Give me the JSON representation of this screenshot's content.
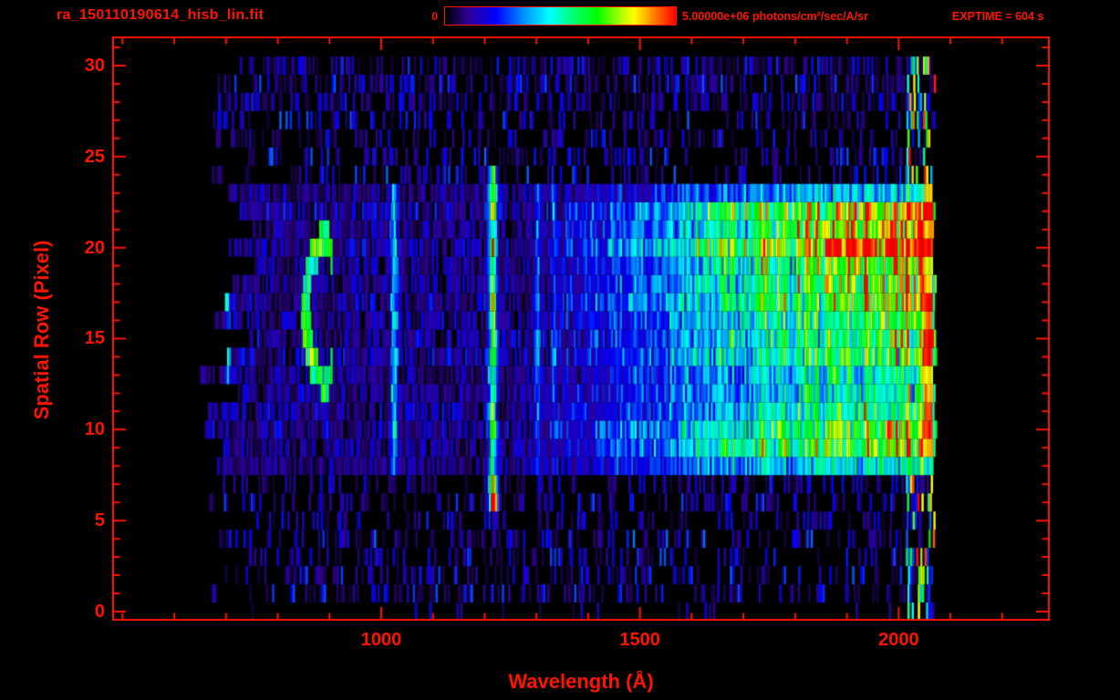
{
  "colors": {
    "background": "#000000",
    "accent_text": "#ff1400",
    "frame": "#ff1400"
  },
  "header": {
    "filename": "ra_150110190614_hisb_lin.fit",
    "colorbar_min_label": "0",
    "colorbar_max_label": "5.00000e+06 photons/cm²/sec/A/sr",
    "exptime_label": "EXPTIME = 604 s"
  },
  "chart_data": {
    "type": "heatmap",
    "title": "ra_150110190614_hisb_lin.fit",
    "xlabel": "Wavelength (Å)",
    "ylabel": "Spatial Row (Pixel)",
    "xlim": [
      480,
      2292
    ],
    "ylim": [
      -0.5,
      31.6
    ],
    "x_ticks": [
      1000,
      1500,
      2000
    ],
    "x_minor_step": 100,
    "y_ticks": [
      0,
      5,
      10,
      15,
      20,
      25,
      30
    ],
    "y_minor_step": 1,
    "grid": false,
    "colorbar": {
      "min": 0,
      "max": 5000000,
      "max_label": "5.00000e+06",
      "units": "photons/cm²/sec/A/sr",
      "position": "top"
    },
    "exposure_seconds": 604,
    "colormap_stops": [
      [
        0.0,
        "#000000"
      ],
      [
        0.1,
        "#30009a"
      ],
      [
        0.22,
        "#0000ff"
      ],
      [
        0.34,
        "#0090ff"
      ],
      [
        0.45,
        "#00ffff"
      ],
      [
        0.58,
        "#00ff55"
      ],
      [
        0.66,
        "#00ff00"
      ],
      [
        0.76,
        "#aaff00"
      ],
      [
        0.82,
        "#ffff00"
      ],
      [
        0.9,
        "#ff8800"
      ],
      [
        1.0,
        "#ff0000"
      ]
    ],
    "features": {
      "seed": 1337,
      "bin_angstrom": 4,
      "data_lambda": {
        "start_base": 650,
        "start_jitter": 110,
        "end_base": 2056,
        "end_jitter": 16,
        "end_band_base": 2062,
        "end_band_jitter": 10
      },
      "band": {
        "row_min": 8,
        "row_max": 23
      },
      "row_weights": [
        0.6,
        1.0,
        0.8,
        0.62,
        0.58,
        0.62,
        0.68,
        0.65,
        0.7,
        0.82,
        0.92,
        1.0,
        1.05,
        1.0,
        0.85,
        0.5
      ],
      "continuum_ramp": [
        [
          1300,
          0
        ],
        [
          1380,
          0.1
        ],
        [
          1450,
          0.18
        ],
        [
          1550,
          0.3
        ],
        [
          1650,
          0.45
        ],
        [
          1750,
          0.58
        ],
        [
          1850,
          0.68
        ],
        [
          1950,
          0.78
        ],
        [
          2045,
          0.82
        ]
      ],
      "noise_rows": [
        {
          "rows": [
            0,
            0
          ],
          "prob": 0.05
        },
        {
          "rows": [
            1,
            7
          ],
          "prob": 0.3
        },
        {
          "rows": [
            24,
            27
          ],
          "prob": 0.3
        },
        {
          "rows": [
            28,
            30
          ],
          "prob": 0.5
        }
      ],
      "band_noise": {
        "prob": 0.85,
        "amp": 0.2
      },
      "sparse_amp": 0.24,
      "lines": [
        {
          "center": 703,
          "width": 9,
          "rows": [
            13,
            17
          ],
          "amp": 0.3
        },
        {
          "center": 1025,
          "width": 13,
          "rows": [
            8,
            23
          ],
          "amp": 0.38
        },
        {
          "center": 1216,
          "width": 15,
          "rows": [
            6,
            24
          ],
          "amp": 0.6
        },
        {
          "center": 1302,
          "width": 10,
          "rows": [
            8,
            23
          ],
          "amp": 0.26
        },
        {
          "center": 1335,
          "width": 8,
          "rows": [
            8,
            23
          ],
          "amp": 0.2
        }
      ],
      "blobs": [
        {
          "center": 1216,
          "row": 6.3,
          "sl": 9,
          "sr": 0.9,
          "amp": 0.5
        },
        {
          "center": 2060,
          "row": 0.5,
          "sl": 5,
          "sr": 0.6,
          "amp": 0.5
        }
      ],
      "arc": {
        "center_lambda": 888,
        "center_row": 16.5,
        "radius_lambda": 36,
        "radius_row": 3.7,
        "thickness": 0.24,
        "amp": 0.5,
        "open_dx": 0.45
      },
      "red_column": {
        "lambda": [
          2046,
          2064
        ],
        "rows": [
          9,
          23
        ],
        "amp": 0.88
      },
      "edge_speckle": {
        "lambda_min": 2014,
        "prob": 0.42,
        "amp_min": 0.15,
        "amp_max": 1.0
      },
      "hot_patch": {
        "lambda": [
          1840,
          2046
        ],
        "rows": [
          19,
          21
        ],
        "bonus": 0.1
      },
      "col_mult": [
        0.65,
        0.7
      ],
      "row_mult": [
        0.85,
        0.3
      ],
      "cell_jitter": [
        0.72,
        0.56
      ]
    }
  }
}
